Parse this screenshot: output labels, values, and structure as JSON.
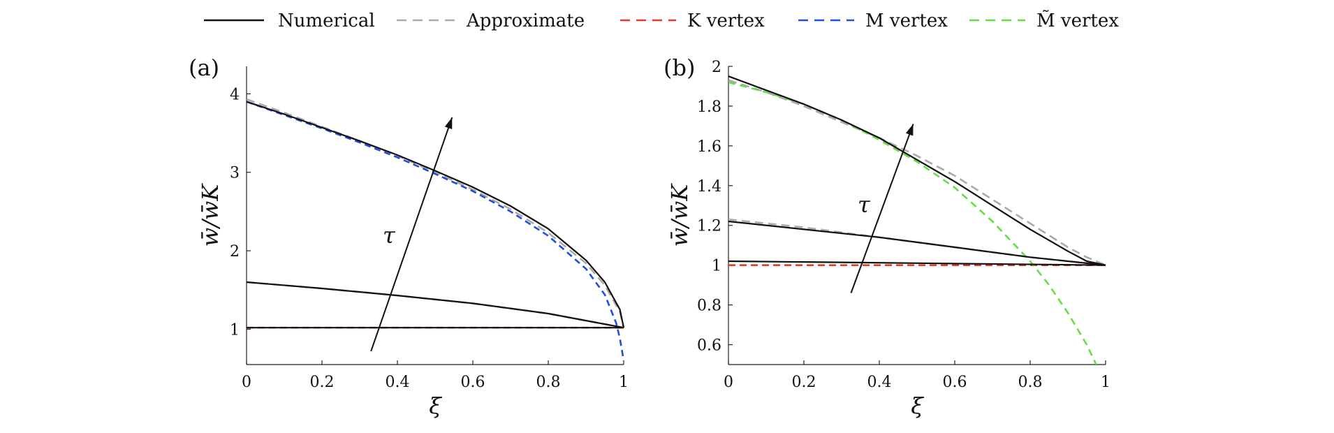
{
  "legend": {
    "items": [
      {
        "label": "Numerical",
        "color": "#111111",
        "dashed": false
      },
      {
        "label": "Approximate",
        "color": "#aaaaaa",
        "dashed": true
      },
      {
        "label": "K vertex",
        "color": "#e8382a",
        "dashed": true
      },
      {
        "label": "M vertex",
        "color": "#1f4fe0",
        "dashed": true
      },
      {
        "label": "M̃ vertex",
        "color": "#66dd44",
        "dashed": true
      }
    ]
  },
  "chart_data": [
    {
      "type": "line",
      "panel_label": "(a)",
      "xlabel": "ξ",
      "ylabel": "w̄/w̄K",
      "xlim": [
        0,
        1
      ],
      "ylim": [
        0.55,
        4.35
      ],
      "xticks": [
        "0",
        "0.2",
        "0.4",
        "0.6",
        "0.8",
        "1"
      ],
      "yticks": [
        "1",
        "2",
        "3",
        "4"
      ],
      "annotation": "τ",
      "series": [
        {
          "name": "Numerical",
          "style": "numerical",
          "x": [
            0,
            0.1,
            0.2,
            0.3,
            0.4,
            0.5,
            0.6,
            0.7,
            0.8,
            0.9,
            0.95,
            0.99,
            1.0
          ],
          "y": [
            3.9,
            3.74,
            3.57,
            3.4,
            3.22,
            3.02,
            2.81,
            2.57,
            2.28,
            1.88,
            1.6,
            1.25,
            1.02
          ]
        },
        {
          "name": "Approximate",
          "style": "approximate",
          "x": [
            0,
            0.1,
            0.2,
            0.3,
            0.4,
            0.5,
            0.6,
            0.7,
            0.8,
            0.9,
            0.95,
            0.99,
            1.0
          ],
          "y": [
            3.93,
            3.76,
            3.58,
            3.4,
            3.21,
            3.0,
            2.78,
            2.53,
            2.23,
            1.84,
            1.56,
            1.22,
            1.02
          ]
        },
        {
          "name": "M vertex",
          "style": "m-vertex",
          "x": [
            0,
            0.1,
            0.2,
            0.3,
            0.4,
            0.5,
            0.6,
            0.7,
            0.8,
            0.9,
            0.95,
            0.98,
            0.99,
            1.0
          ],
          "y": [
            3.9,
            3.73,
            3.56,
            3.38,
            3.19,
            2.98,
            2.76,
            2.5,
            2.19,
            1.77,
            1.44,
            1.08,
            0.88,
            0.6
          ]
        },
        {
          "name": "Numerical",
          "style": "numerical",
          "x": [
            0,
            0.2,
            0.4,
            0.6,
            0.8,
            1.0
          ],
          "y": [
            1.6,
            1.52,
            1.43,
            1.33,
            1.2,
            1.02
          ]
        },
        {
          "name": "Approximate",
          "style": "approximate",
          "x": [
            0,
            0.2,
            0.4,
            0.6,
            0.8,
            1.0
          ],
          "y": [
            1.6,
            1.52,
            1.43,
            1.33,
            1.2,
            1.02
          ]
        },
        {
          "name": "Numerical",
          "style": "numerical",
          "x": [
            0,
            1.0
          ],
          "y": [
            1.02,
            1.02
          ]
        },
        {
          "name": "K vertex",
          "style": "k-vertex",
          "x": [
            0,
            1.0
          ],
          "y": [
            1.02,
            1.02
          ]
        }
      ],
      "arrow": {
        "from": [
          0.33,
          0.72
        ],
        "to": [
          0.545,
          3.7
        ]
      }
    },
    {
      "type": "line",
      "panel_label": "(b)",
      "xlabel": "ξ",
      "ylabel": "w̄/w̄K",
      "xlim": [
        0,
        1
      ],
      "ylim": [
        0.5,
        2.0
      ],
      "xticks": [
        "0",
        "0.2",
        "0.4",
        "0.6",
        "0.8",
        "1"
      ],
      "yticks": [
        "0.6",
        "0.8",
        "1",
        "1.2",
        "1.4",
        "1.6",
        "1.8",
        "2"
      ],
      "annotation": "τ",
      "series": [
        {
          "name": "Numerical",
          "style": "numerical",
          "x": [
            0,
            0.1,
            0.2,
            0.3,
            0.4,
            0.5,
            0.6,
            0.7,
            0.8,
            0.9,
            0.95,
            1.0
          ],
          "y": [
            1.95,
            1.88,
            1.81,
            1.73,
            1.64,
            1.53,
            1.42,
            1.3,
            1.18,
            1.07,
            1.02,
            1.0
          ]
        },
        {
          "name": "Approximate",
          "style": "approximate",
          "x": [
            0,
            0.1,
            0.2,
            0.3,
            0.4,
            0.5,
            0.6,
            0.7,
            0.8,
            0.9,
            0.95,
            1.0
          ],
          "y": [
            1.93,
            1.87,
            1.8,
            1.72,
            1.64,
            1.55,
            1.45,
            1.33,
            1.21,
            1.09,
            1.04,
            1.0
          ]
        },
        {
          "name": "M̃ vertex",
          "style": "mt-vertex",
          "x": [
            0,
            0.1,
            0.2,
            0.3,
            0.4,
            0.5,
            0.6,
            0.7,
            0.8,
            0.85,
            0.9,
            0.95,
            0.975
          ],
          "y": [
            1.92,
            1.87,
            1.81,
            1.73,
            1.63,
            1.52,
            1.39,
            1.22,
            1.02,
            0.9,
            0.76,
            0.6,
            0.5
          ]
        },
        {
          "name": "Numerical",
          "style": "numerical",
          "x": [
            0,
            0.2,
            0.4,
            0.6,
            0.8,
            1.0
          ],
          "y": [
            1.22,
            1.18,
            1.14,
            1.09,
            1.04,
            1.0
          ]
        },
        {
          "name": "Approximate",
          "style": "approximate",
          "x": [
            0,
            0.2,
            0.4,
            0.6,
            0.8,
            1.0
          ],
          "y": [
            1.23,
            1.19,
            1.14,
            1.09,
            1.04,
            1.0
          ]
        },
        {
          "name": "Numerical",
          "style": "numerical",
          "x": [
            0,
            0.5,
            1.0
          ],
          "y": [
            1.02,
            1.01,
            1.0
          ]
        },
        {
          "name": "K vertex",
          "style": "k-vertex",
          "x": [
            0,
            1.0
          ],
          "y": [
            1.0,
            1.0
          ]
        }
      ],
      "arrow": {
        "from": [
          0.325,
          0.86
        ],
        "to": [
          0.49,
          1.71
        ]
      }
    }
  ]
}
